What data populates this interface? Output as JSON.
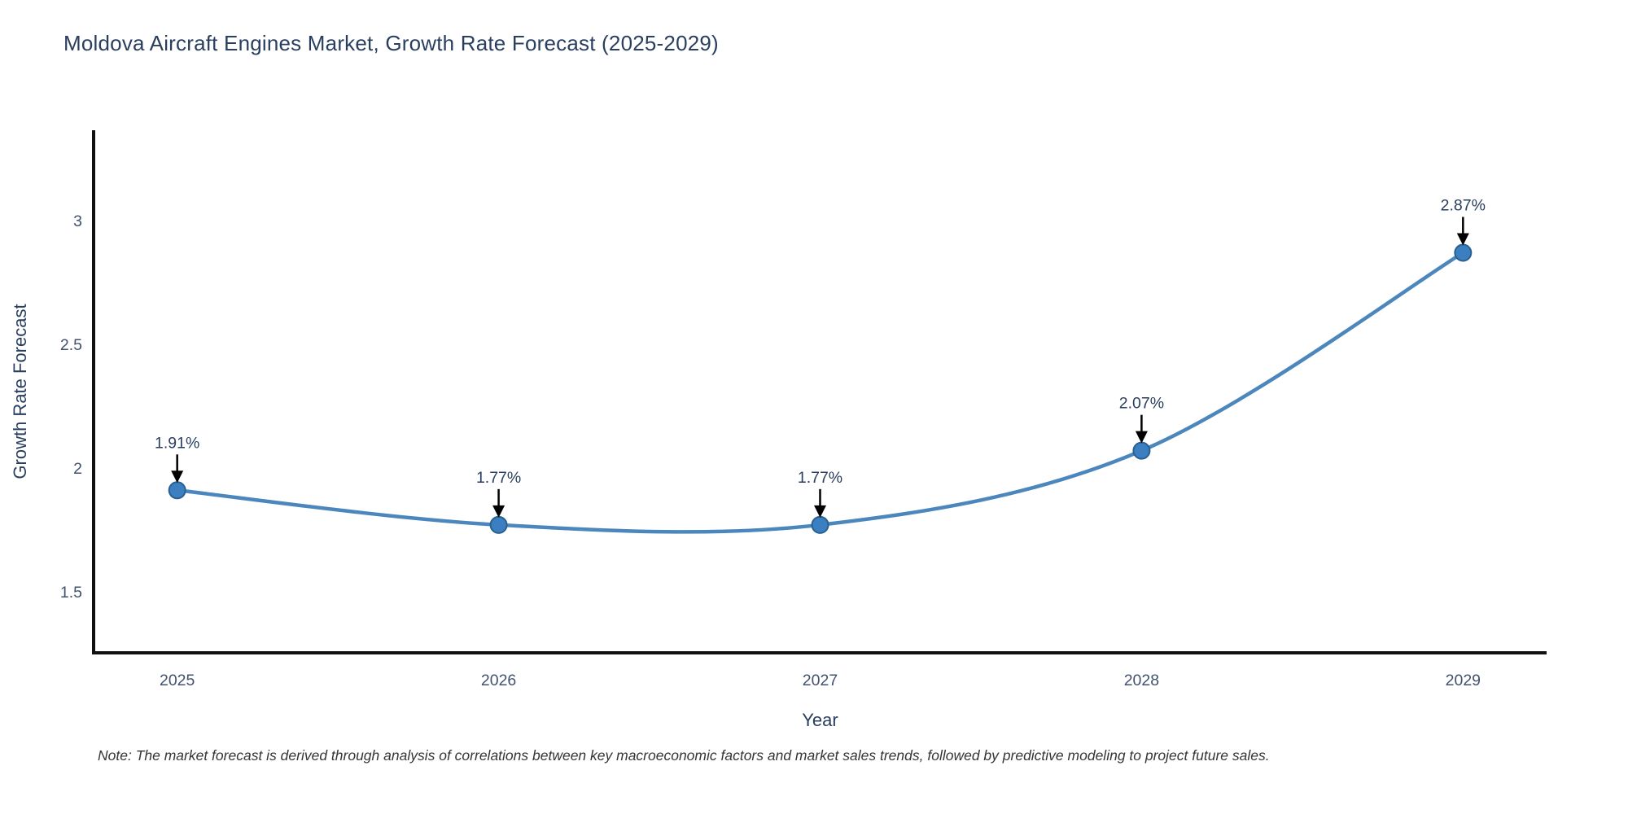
{
  "title": "Moldova Aircraft Engines Market, Growth Rate Forecast (2025-2029)",
  "note": "Note: The market forecast is derived through analysis of correlations between key macroeconomic factors and market sales trends, followed by predictive modeling to project future sales.",
  "chart_data": {
    "type": "line",
    "title": "Moldova Aircraft Engines Market, Growth Rate Forecast (2025-2029)",
    "x": [
      2025,
      2026,
      2027,
      2028,
      2029
    ],
    "categories": [
      "2025",
      "2026",
      "2027",
      "2028",
      "2029"
    ],
    "series": [
      {
        "name": "Growth Rate Forecast",
        "values": [
          1.91,
          1.77,
          1.77,
          2.07,
          2.87
        ]
      }
    ],
    "point_labels": [
      "1.91%",
      "1.77%",
      "1.77%",
      "2.07%",
      "2.87%"
    ],
    "xlabel": "Year",
    "ylabel": "Growth Rate Forecast",
    "yticks": [
      1.5,
      2,
      2.5,
      3
    ],
    "ytick_labels": [
      "1.5",
      "2",
      "2.5",
      "3"
    ],
    "ylim": [
      1.253,
      3.365
    ],
    "xlim": [
      2024.74,
      2029.26
    ],
    "grid": false,
    "legend": false,
    "line_shape": "spline",
    "annotations_arrow": true
  },
  "colors": {
    "background": "#ffffff",
    "line": "#4b87bd",
    "marker": "#3b7fc0",
    "marker_edge": "#29608f",
    "axis": "#111111",
    "title_text": "#2a3f5f",
    "tick_text": "#42526e",
    "axis_label_text": "#2a3f5f",
    "annotation_text": "#2a3f5f",
    "arrow": "#000000",
    "note_text": "#353535"
  }
}
